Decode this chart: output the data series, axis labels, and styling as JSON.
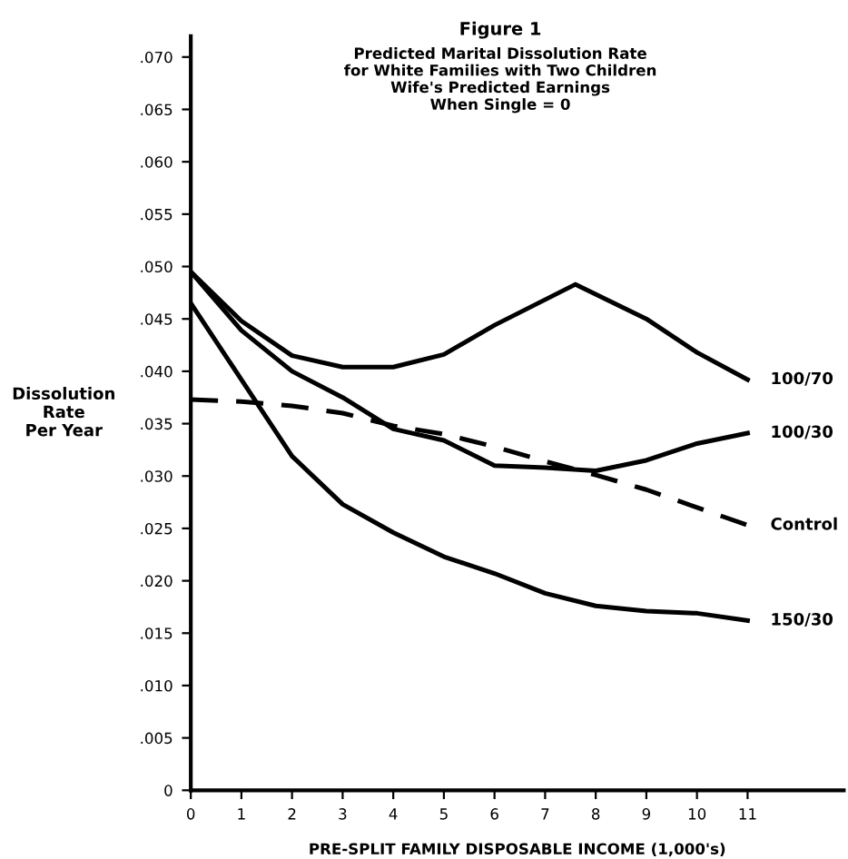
{
  "chart_data": {
    "type": "line",
    "title": "Figure 1",
    "subtitle": "Predicted Marital Dissolution Rate\nfor White Families with Two Children\nWife's Predicted Earnings\nWhen Single = 0",
    "xlabel": "PRE-SPLIT FAMILY DISPOSABLE INCOME (1,000's)",
    "ylabel": "Dissolution\nRate\nPer Year",
    "xlim": [
      0,
      12.9
    ],
    "ylim": [
      0,
      0.072
    ],
    "xticks": [
      0,
      1,
      2,
      3,
      4,
      5,
      6,
      7,
      8,
      9,
      10,
      11
    ],
    "yticks": [
      {
        "value": 0,
        "label": "0"
      },
      {
        "value": 0.005,
        "label": ".005"
      },
      {
        "value": 0.01,
        "label": ".010"
      },
      {
        "value": 0.015,
        "label": ".015"
      },
      {
        "value": 0.02,
        "label": ".020"
      },
      {
        "value": 0.025,
        "label": ".025"
      },
      {
        "value": 0.03,
        "label": ".030"
      },
      {
        "value": 0.035,
        "label": ".035"
      },
      {
        "value": 0.04,
        "label": ".040"
      },
      {
        "value": 0.045,
        "label": ".045"
      },
      {
        "value": 0.05,
        "label": ".050"
      },
      {
        "value": 0.055,
        "label": ".055"
      },
      {
        "value": 0.06,
        "label": ".060"
      },
      {
        "value": 0.065,
        "label": ".065"
      },
      {
        "value": 0.07,
        "label": ".070"
      }
    ],
    "grid": false,
    "legend": false,
    "marker": "none",
    "series": [
      {
        "name": "100/70",
        "color": "#000000",
        "line_style": "solid",
        "x": [
          0,
          1,
          2,
          3,
          4,
          5,
          6,
          7.6,
          9,
          10,
          11
        ],
        "values": [
          0.0495,
          0.0448,
          0.0415,
          0.0404,
          0.0404,
          0.0416,
          0.0444,
          0.0483,
          0.045,
          0.0418,
          0.0392
        ]
      },
      {
        "name": "100/30",
        "color": "#000000",
        "line_style": "solid",
        "x": [
          0,
          1,
          2,
          3,
          4,
          5,
          6,
          7,
          8,
          9,
          10,
          11
        ],
        "values": [
          0.0495,
          0.0439,
          0.04,
          0.0375,
          0.0345,
          0.0334,
          0.031,
          0.0308,
          0.0305,
          0.0315,
          0.0331,
          0.0341
        ]
      },
      {
        "name": "Control",
        "color": "#000000",
        "line_style": "dashed",
        "x": [
          0,
          1,
          2,
          3,
          4,
          5,
          6,
          7,
          8,
          9,
          10,
          11
        ],
        "values": [
          0.0373,
          0.0371,
          0.0367,
          0.036,
          0.0348,
          0.034,
          0.0328,
          0.0314,
          0.0301,
          0.0287,
          0.027,
          0.0253
        ]
      },
      {
        "name": "150/30",
        "color": "#000000",
        "line_style": "solid",
        "x": [
          0,
          1,
          2,
          3,
          4,
          5,
          6,
          7,
          8,
          9,
          10,
          11
        ],
        "values": [
          0.0465,
          0.0392,
          0.0319,
          0.0273,
          0.0246,
          0.0223,
          0.0207,
          0.0188,
          0.0176,
          0.0171,
          0.0169,
          0.0162
        ]
      }
    ]
  }
}
